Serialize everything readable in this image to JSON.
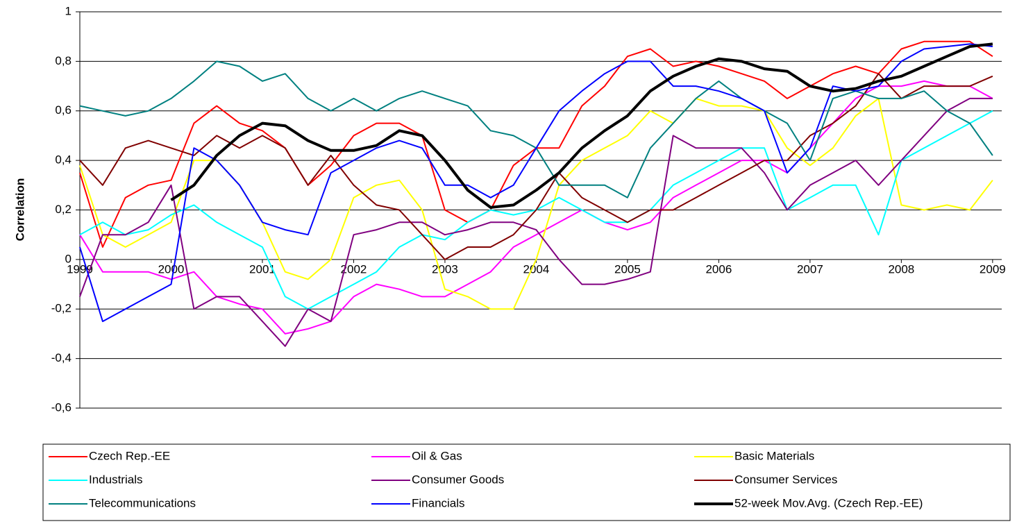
{
  "chart_data": {
    "type": "line",
    "y_label": "Correlation",
    "x": [
      1999,
      1999.25,
      1999.5,
      1999.75,
      2000,
      2000.25,
      2000.5,
      2000.75,
      2001,
      2001.25,
      2001.5,
      2001.75,
      2002,
      2002.25,
      2002.5,
      2002.75,
      2003,
      2003.25,
      2003.5,
      2003.75,
      2004,
      2004.25,
      2004.5,
      2004.75,
      2005,
      2005.25,
      2005.5,
      2005.75,
      2006,
      2006.25,
      2006.5,
      2006.75,
      2007,
      2007.25,
      2007.5,
      2007.75,
      2008,
      2008.25,
      2008.5,
      2008.75,
      2009
    ],
    "xlim": [
      1999,
      2009.1
    ],
    "xticks": [
      1999,
      2000,
      2001,
      2002,
      2003,
      2004,
      2005,
      2006,
      2007,
      2008,
      2009
    ],
    "ylim": [
      -0.6,
      1
    ],
    "yticks": [
      {
        "value": -0.6,
        "label": "-0,6"
      },
      {
        "value": -0.4,
        "label": "-0,4"
      },
      {
        "value": -0.2,
        "label": "-0,2"
      },
      0,
      {
        "value": 0.2,
        "label": "0,2"
      },
      {
        "value": 0.4,
        "label": "0,4"
      },
      {
        "value": 0.6,
        "label": "0,6"
      },
      {
        "value": 0.8,
        "label": "0,8"
      },
      1
    ],
    "grid": true,
    "legend": "bottom",
    "series": [
      {
        "name": "Czech Rep.-EE",
        "color": "#ff0000",
        "values": [
          0.35,
          0.05,
          0.25,
          0.3,
          0.32,
          0.55,
          0.62,
          0.55,
          0.52,
          0.45,
          0.3,
          0.38,
          0.5,
          0.55,
          0.55,
          0.5,
          0.2,
          0.15,
          0.2,
          0.38,
          0.45,
          0.45,
          0.62,
          0.7,
          0.82,
          0.85,
          0.78,
          0.8,
          0.78,
          0.75,
          0.72,
          0.65,
          0.7,
          0.75,
          0.78,
          0.75,
          0.85,
          0.88,
          0.88,
          0.88,
          0.82
        ]
      },
      {
        "name": "Oil & Gas",
        "color": "#ff00ff",
        "values": [
          0.1,
          -0.05,
          -0.05,
          -0.05,
          -0.08,
          -0.05,
          -0.15,
          -0.18,
          -0.2,
          -0.3,
          -0.28,
          -0.25,
          -0.15,
          -0.1,
          -0.12,
          -0.15,
          -0.15,
          -0.1,
          -0.05,
          0.05,
          0.1,
          0.15,
          0.2,
          0.15,
          0.12,
          0.15,
          0.25,
          0.3,
          0.35,
          0.4,
          0.4,
          0.35,
          0.45,
          0.55,
          0.65,
          0.7,
          0.7,
          0.72,
          0.7,
          0.7,
          0.65
        ]
      },
      {
        "name": "Basic Materials",
        "color": "#ffff00",
        "values": [
          0.38,
          0.1,
          0.05,
          0.1,
          0.15,
          0.4,
          0.4,
          0.3,
          0.15,
          -0.05,
          -0.08,
          0,
          0.25,
          0.3,
          0.32,
          0.2,
          -0.12,
          -0.15,
          -0.2,
          -0.2,
          0,
          0.3,
          0.4,
          0.45,
          0.5,
          0.6,
          0.55,
          0.65,
          0.62,
          0.62,
          0.6,
          0.45,
          0.38,
          0.45,
          0.58,
          0.65,
          0.22,
          0.2,
          0.22,
          0.2,
          0.32
        ]
      },
      {
        "name": "Industrials",
        "color": "#00ffff",
        "values": [
          0.1,
          0.15,
          0.1,
          0.12,
          0.18,
          0.22,
          0.15,
          0.1,
          0.05,
          -0.15,
          -0.2,
          -0.15,
          -0.1,
          -0.05,
          0.05,
          0.1,
          0.08,
          0.15,
          0.2,
          0.18,
          0.2,
          0.25,
          0.2,
          0.15,
          0.15,
          0.2,
          0.3,
          0.35,
          0.4,
          0.45,
          0.45,
          0.2,
          0.25,
          0.3,
          0.3,
          0.1,
          0.4,
          0.45,
          0.5,
          0.55,
          0.6
        ]
      },
      {
        "name": "Consumer Goods",
        "color": "#800080",
        "values": [
          -0.15,
          0.1,
          0.1,
          0.15,
          0.3,
          -0.2,
          -0.15,
          -0.15,
          -0.25,
          -0.35,
          -0.2,
          -0.25,
          0.1,
          0.12,
          0.15,
          0.15,
          0.1,
          0.12,
          0.15,
          0.15,
          0.12,
          0,
          -0.1,
          -0.1,
          -0.08,
          -0.05,
          0.5,
          0.45,
          0.45,
          0.45,
          0.35,
          0.2,
          0.3,
          0.35,
          0.4,
          0.3,
          0.4,
          0.5,
          0.6,
          0.65,
          0.65
        ]
      },
      {
        "name": "Consumer Services",
        "color": "#800000",
        "values": [
          0.4,
          0.3,
          0.45,
          0.48,
          0.45,
          0.42,
          0.5,
          0.45,
          0.5,
          0.45,
          0.3,
          0.42,
          0.3,
          0.22,
          0.2,
          0.1,
          0,
          0.05,
          0.05,
          0.1,
          0.2,
          0.35,
          0.25,
          0.2,
          0.15,
          0.2,
          0.2,
          0.25,
          0.3,
          0.35,
          0.4,
          0.4,
          0.5,
          0.55,
          0.62,
          0.75,
          0.65,
          0.7,
          0.7,
          0.7,
          0.74
        ]
      },
      {
        "name": "Telecommunications",
        "color": "#008080",
        "values": [
          0.62,
          0.6,
          0.58,
          0.6,
          0.65,
          0.72,
          0.8,
          0.78,
          0.72,
          0.75,
          0.65,
          0.6,
          0.65,
          0.6,
          0.65,
          0.68,
          0.65,
          0.62,
          0.52,
          0.5,
          0.45,
          0.3,
          0.3,
          0.3,
          0.25,
          0.45,
          0.55,
          0.65,
          0.72,
          0.65,
          0.6,
          0.55,
          0.4,
          0.65,
          0.68,
          0.65,
          0.65,
          0.68,
          0.6,
          0.55,
          0.42
        ]
      },
      {
        "name": "Financials",
        "color": "#0000ff",
        "values": [
          0.05,
          -0.25,
          -0.2,
          -0.15,
          -0.1,
          0.45,
          0.4,
          0.3,
          0.15,
          0.12,
          0.1,
          0.35,
          0.4,
          0.45,
          0.48,
          0.45,
          0.3,
          0.3,
          0.25,
          0.3,
          0.45,
          0.6,
          0.68,
          0.75,
          0.8,
          0.8,
          0.7,
          0.7,
          0.68,
          0.65,
          0.6,
          0.35,
          0.45,
          0.7,
          0.68,
          0.7,
          0.8,
          0.85,
          0.86,
          0.87,
          0.86
        ]
      },
      {
        "name": "52-week Mov.Avg. (Czech Rep.-EE)",
        "color": "#000000",
        "values": [
          null,
          null,
          null,
          null,
          0.24,
          0.3,
          0.42,
          0.5,
          0.55,
          0.54,
          0.48,
          0.44,
          0.44,
          0.46,
          0.52,
          0.5,
          0.4,
          0.28,
          0.21,
          0.22,
          0.28,
          0.35,
          0.45,
          0.52,
          0.58,
          0.68,
          0.74,
          0.78,
          0.81,
          0.8,
          0.77,
          0.76,
          0.7,
          0.68,
          0.69,
          0.72,
          0.74,
          0.78,
          0.82,
          0.86,
          0.87
        ]
      }
    ]
  }
}
